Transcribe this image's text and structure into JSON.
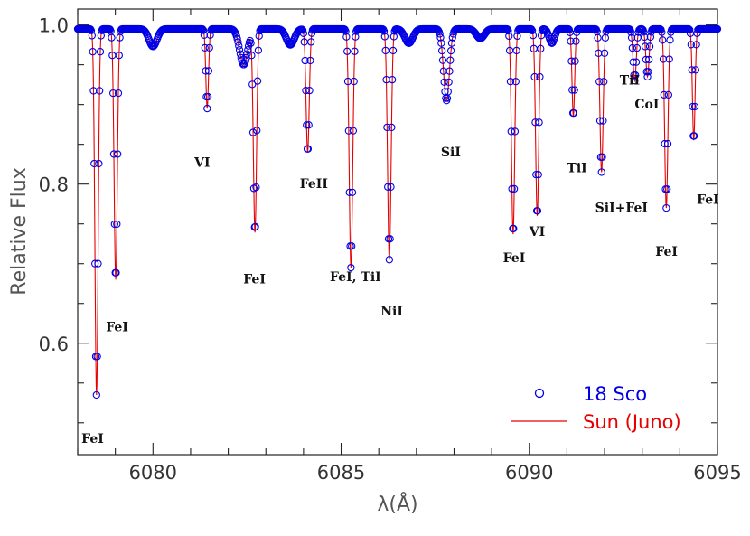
{
  "chart_data": {
    "type": "line",
    "xlabel": "λ(Å)",
    "ylabel": "Relative Flux",
    "xlim": [
      6078,
      6095
    ],
    "ylim": [
      0.46,
      1.02
    ],
    "xticks": [
      {
        "value": 6080,
        "label": "6080"
      },
      {
        "value": 6085,
        "label": "6085"
      },
      {
        "value": 6090,
        "label": "6090"
      },
      {
        "value": 6095,
        "label": "6095"
      }
    ],
    "yticks": [
      {
        "value": 0.6,
        "label": "0.6"
      },
      {
        "value": 0.8,
        "label": "0.8"
      },
      {
        "value": 1.0,
        "label": "1.0"
      }
    ],
    "continuum": 0.995,
    "lines": [
      {
        "x": 6078.5,
        "depth": 0.46,
        "width": 0.06,
        "label": "FeI"
      },
      {
        "x": 6079.01,
        "depth": 0.315,
        "width": 0.06,
        "label": "FeI"
      },
      {
        "x": 6080.0,
        "depth": 0.022,
        "width": 0.15,
        "label": ""
      },
      {
        "x": 6081.44,
        "depth": 0.1,
        "width": 0.05,
        "label": "VI"
      },
      {
        "x": 6082.41,
        "depth": 0.045,
        "width": 0.15,
        "label": ""
      },
      {
        "x": 6082.71,
        "depth": 0.255,
        "width": 0.06,
        "label": "FeI"
      },
      {
        "x": 6083.65,
        "depth": 0.02,
        "width": 0.15,
        "label": ""
      },
      {
        "x": 6084.11,
        "depth": 0.155,
        "width": 0.06,
        "label": "FeII"
      },
      {
        "x": 6085.26,
        "depth": 0.3,
        "width": 0.065,
        "label": "FeI, TiI"
      },
      {
        "x": 6086.28,
        "depth": 0.29,
        "width": 0.065,
        "label": "NiI"
      },
      {
        "x": 6086.8,
        "depth": 0.018,
        "width": 0.15,
        "label": ""
      },
      {
        "x": 6087.8,
        "depth": 0.09,
        "width": 0.11,
        "label": "SiI"
      },
      {
        "x": 6088.7,
        "depth": 0.012,
        "width": 0.15,
        "label": ""
      },
      {
        "x": 6089.57,
        "depth": 0.258,
        "width": 0.06,
        "label": "FeI"
      },
      {
        "x": 6090.21,
        "depth": 0.235,
        "width": 0.06,
        "label": "VI"
      },
      {
        "x": 6090.6,
        "depth": 0.018,
        "width": 0.1,
        "label": ""
      },
      {
        "x": 6091.17,
        "depth": 0.11,
        "width": 0.05,
        "label": "TiI"
      },
      {
        "x": 6091.92,
        "depth": 0.18,
        "width": 0.06,
        "label": "SiI+FeI"
      },
      {
        "x": 6092.8,
        "depth": 0.065,
        "width": 0.06,
        "label": "TiI"
      },
      {
        "x": 6093.14,
        "depth": 0.06,
        "width": 0.06,
        "label": "CoI"
      },
      {
        "x": 6093.64,
        "depth": 0.225,
        "width": 0.06,
        "label": "FeI"
      },
      {
        "x": 6094.37,
        "depth": 0.14,
        "width": 0.05,
        "label": "FeI"
      }
    ],
    "labels": [
      {
        "text": "FeI",
        "x": 6078.1,
        "y": 0.475
      },
      {
        "text": "FeI",
        "x": 6078.75,
        "y": 0.615
      },
      {
        "text": "VI",
        "x": 6081.1,
        "y": 0.822
      },
      {
        "text": "FeI",
        "x": 6082.4,
        "y": 0.675
      },
      {
        "text": "FeII",
        "x": 6083.9,
        "y": 0.795
      },
      {
        "text": "FeI, TiI",
        "x": 6084.7,
        "y": 0.678
      },
      {
        "text": "NiI",
        "x": 6086.05,
        "y": 0.635
      },
      {
        "text": "SiI",
        "x": 6087.65,
        "y": 0.835
      },
      {
        "text": "FeI",
        "x": 6089.3,
        "y": 0.702
      },
      {
        "text": "VI",
        "x": 6090.0,
        "y": 0.735
      },
      {
        "text": "TiI",
        "x": 6091.0,
        "y": 0.815
      },
      {
        "text": "SiI+FeI",
        "x": 6091.75,
        "y": 0.765
      },
      {
        "text": "TiI",
        "x": 6092.4,
        "y": 0.925
      },
      {
        "text": "CoI",
        "x": 6092.8,
        "y": 0.895
      },
      {
        "text": "FeI",
        "x": 6093.35,
        "y": 0.71
      },
      {
        "text": "FeI",
        "x": 6094.45,
        "y": 0.775
      }
    ],
    "series": [
      {
        "name": "18 Sco",
        "kind": "points",
        "color": "#0000e6",
        "x_start": 6078.0,
        "x_end": 6095.0,
        "x_step": 0.02
      },
      {
        "name": "Sun (Juno)",
        "kind": "line",
        "color": "#e60000",
        "x_start": 6078.0,
        "x_end": 6095.0,
        "x_step": 0.01
      }
    ],
    "legend": {
      "placement": "bottom-right"
    },
    "grid": false
  }
}
